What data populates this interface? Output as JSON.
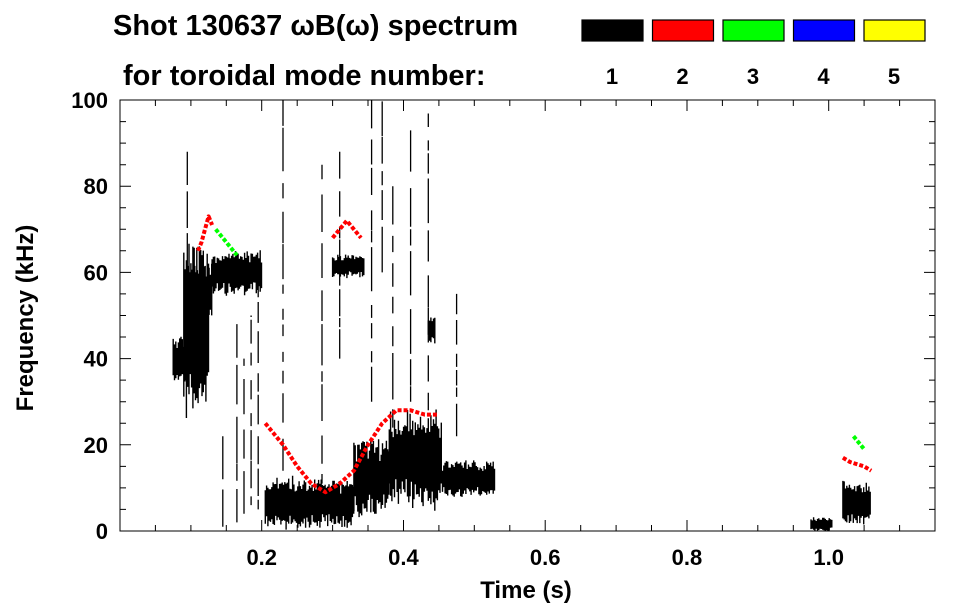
{
  "chart_data": {
    "type": "heatmap",
    "title_line1": "Shot 130637 ωB(ω) spectrum",
    "title_line2": "for toroidal mode number:",
    "xlabel": "Time (s)",
    "ylabel": "Frequency (kHz)",
    "xlim": [
      0.0,
      1.15
    ],
    "ylim": [
      0,
      100
    ],
    "x_ticks": [
      0.2,
      0.4,
      0.6,
      0.8,
      1.0
    ],
    "x_tick_labels": [
      "0.2",
      "0.4",
      "0.6",
      "0.8",
      "1.0"
    ],
    "y_ticks": [
      0,
      20,
      40,
      60,
      80,
      100
    ],
    "y_tick_labels": [
      "0",
      "20",
      "40",
      "60",
      "80",
      "100"
    ],
    "legend": [
      {
        "label": "1",
        "color": "#000000"
      },
      {
        "label": "2",
        "color": "#ff0000"
      },
      {
        "label": "3",
        "color": "#00ff00"
      },
      {
        "label": "4",
        "color": "#0000ff"
      },
      {
        "label": "5",
        "color": "#ffff00"
      }
    ],
    "blobs": [
      {
        "mode": 1,
        "t": [
          0.075,
          0.095
        ],
        "f": [
          35,
          45
        ]
      },
      {
        "mode": 1,
        "t": [
          0.09,
          0.125
        ],
        "f": [
          28,
          66
        ]
      },
      {
        "mode": 1,
        "t": [
          0.1,
          0.13
        ],
        "f": [
          50,
          62
        ]
      },
      {
        "mode": 1,
        "t": [
          0.13,
          0.2
        ],
        "f": [
          55,
          65
        ]
      },
      {
        "mode": 1,
        "t": [
          0.205,
          0.33
        ],
        "f": [
          1,
          12
        ]
      },
      {
        "mode": 1,
        "t": [
          0.33,
          0.38
        ],
        "f": [
          4,
          21
        ]
      },
      {
        "mode": 1,
        "t": [
          0.38,
          0.455
        ],
        "f": [
          6,
          27
        ]
      },
      {
        "mode": 1,
        "t": [
          0.455,
          0.53
        ],
        "f": [
          8,
          16
        ]
      },
      {
        "mode": 1,
        "t": [
          0.3,
          0.345
        ],
        "f": [
          59,
          64
        ]
      },
      {
        "mode": 1,
        "t": [
          0.435,
          0.445
        ],
        "f": [
          44,
          50
        ]
      },
      {
        "mode": 1,
        "t": [
          1.02,
          1.06
        ],
        "f": [
          2,
          11
        ]
      },
      {
        "mode": 1,
        "t": [
          0.975,
          1.005
        ],
        "f": [
          0,
          3
        ]
      }
    ],
    "streaks": [
      {
        "mode": 1,
        "t": 0.095,
        "f": [
          60,
          88
        ]
      },
      {
        "mode": 1,
        "t": 0.145,
        "f": [
          1,
          22
        ]
      },
      {
        "mode": 1,
        "t": 0.165,
        "f": [
          2,
          48
        ]
      },
      {
        "mode": 1,
        "t": 0.175,
        "f": [
          4,
          40
        ]
      },
      {
        "mode": 1,
        "t": 0.185,
        "f": [
          6,
          50
        ]
      },
      {
        "mode": 1,
        "t": 0.195,
        "f": [
          5,
          62
        ]
      },
      {
        "mode": 1,
        "t": 0.23,
        "f": [
          14,
          100
        ]
      },
      {
        "mode": 1,
        "t": 0.285,
        "f": [
          11,
          85
        ]
      },
      {
        "mode": 1,
        "t": 0.31,
        "f": [
          40,
          88
        ]
      },
      {
        "mode": 1,
        "t": 0.355,
        "f": [
          30,
          100
        ]
      },
      {
        "mode": 1,
        "t": 0.37,
        "f": [
          60,
          100
        ]
      },
      {
        "mode": 1,
        "t": 0.385,
        "f": [
          24,
          80
        ]
      },
      {
        "mode": 1,
        "t": 0.41,
        "f": [
          30,
          95
        ]
      },
      {
        "mode": 1,
        "t": 0.435,
        "f": [
          28,
          100
        ]
      },
      {
        "mode": 1,
        "t": 0.475,
        "f": [
          22,
          55
        ]
      }
    ],
    "tracks": [
      {
        "mode": 2,
        "t": [
          0.205,
          0.23,
          0.25,
          0.27,
          0.29,
          0.31,
          0.33,
          0.35,
          0.37,
          0.39,
          0.41,
          0.43,
          0.45
        ],
        "f": [
          25,
          20,
          15,
          11,
          9,
          11,
          14,
          20,
          25,
          28,
          28,
          27,
          27
        ]
      },
      {
        "mode": 2,
        "t": [
          0.3,
          0.31,
          0.32,
          0.33,
          0.34
        ],
        "f": [
          68,
          70,
          72,
          70,
          68
        ]
      },
      {
        "mode": 2,
        "t": [
          0.11,
          0.115,
          0.12,
          0.125,
          0.13
        ],
        "f": [
          65,
          67,
          70,
          73,
          71
        ]
      },
      {
        "mode": 2,
        "t": [
          1.02,
          1.03,
          1.04,
          1.05,
          1.06
        ],
        "f": [
          17,
          16,
          15.5,
          15,
          14
        ]
      },
      {
        "mode": 3,
        "t": [
          0.135,
          0.145,
          0.155,
          0.165
        ],
        "f": [
          70,
          68,
          66,
          64
        ]
      },
      {
        "mode": 3,
        "t": [
          1.035,
          1.04,
          1.045,
          1.05
        ],
        "f": [
          22,
          21,
          20,
          19
        ]
      }
    ]
  }
}
